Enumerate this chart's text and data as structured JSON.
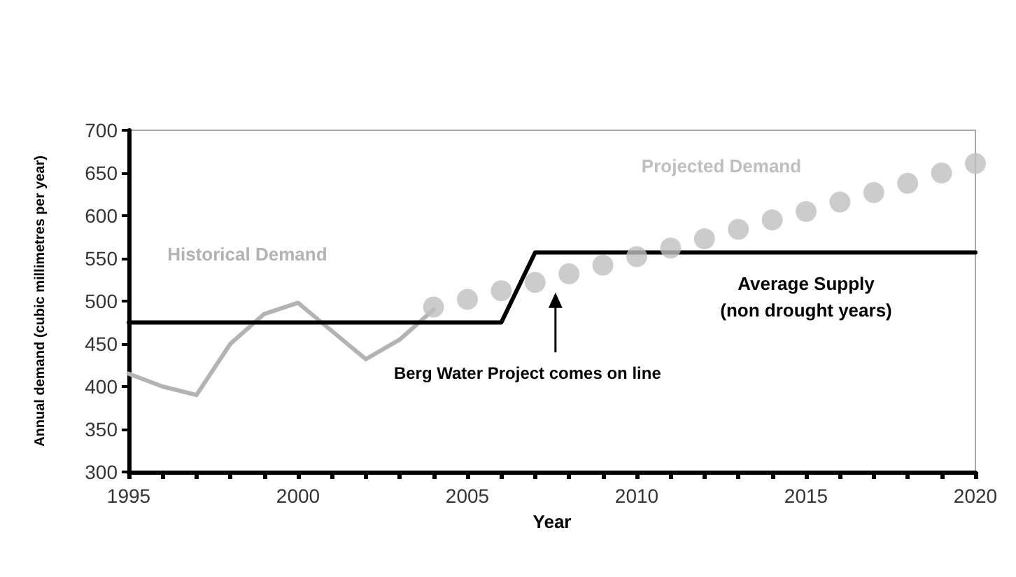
{
  "chart_data": {
    "type": "line",
    "xlabel": "Year",
    "ylabel": "Annual demand (cubic millimetres per year)",
    "xlim": [
      1995,
      2020
    ],
    "ylim": [
      300,
      700
    ],
    "xticks": [
      1995,
      {
        "value": 1996,
        "label": null
      },
      {
        "value": 1997,
        "label": null
      },
      {
        "value": 1998,
        "label": null
      },
      {
        "value": 1999,
        "label": null
      },
      2000,
      {
        "value": 2001,
        "label": null
      },
      {
        "value": 2002,
        "label": null
      },
      {
        "value": 2003,
        "label": null
      },
      {
        "value": 2004,
        "label": null
      },
      2005,
      {
        "value": 2006,
        "label": null
      },
      {
        "value": 2007,
        "label": null
      },
      {
        "value": 2008,
        "label": null
      },
      {
        "value": 2009,
        "label": null
      },
      2010,
      {
        "value": 2011,
        "label": null
      },
      {
        "value": 2012,
        "label": null
      },
      {
        "value": 2013,
        "label": null
      },
      {
        "value": 2014,
        "label": null
      },
      2015,
      {
        "value": 2016,
        "label": null
      },
      {
        "value": 2017,
        "label": null
      },
      {
        "value": 2018,
        "label": null
      },
      {
        "value": 2019,
        "label": null
      },
      2020
    ],
    "yticks": [
      300,
      350,
      400,
      450,
      500,
      550,
      600,
      650,
      700
    ],
    "grid": false,
    "legend": false,
    "series": [
      {
        "name": "Historical Demand",
        "type": "line",
        "color": "#b3b3b3",
        "marker": "none",
        "x": [
          1995,
          1996,
          1997,
          1998,
          1999,
          2000,
          2001,
          2002,
          2003,
          2004
        ],
        "values": [
          415,
          400,
          390,
          450,
          485,
          498,
          465,
          432,
          455,
          490
        ]
      },
      {
        "name": "Projected Demand",
        "type": "scatter",
        "color": "#bfbfbf",
        "marker": "circle",
        "x": [
          2004,
          2005,
          2006,
          2007,
          2008,
          2009,
          2010,
          2011,
          2012,
          2013,
          2014,
          2015,
          2016,
          2017,
          2018,
          2019,
          2020
        ],
        "values": [
          493,
          502,
          512,
          522,
          532,
          542,
          552,
          562,
          573,
          584,
          595,
          605,
          616,
          627,
          638,
          650,
          661
        ]
      },
      {
        "name": "Average Supply\n(non drought years)",
        "type": "line",
        "color": "#000000",
        "marker": "none",
        "x": [
          1995,
          2006,
          2007,
          2020
        ],
        "values": [
          475,
          475,
          557,
          557
        ]
      }
    ],
    "annotations": [
      "Berg Water Project comes on line"
    ]
  }
}
